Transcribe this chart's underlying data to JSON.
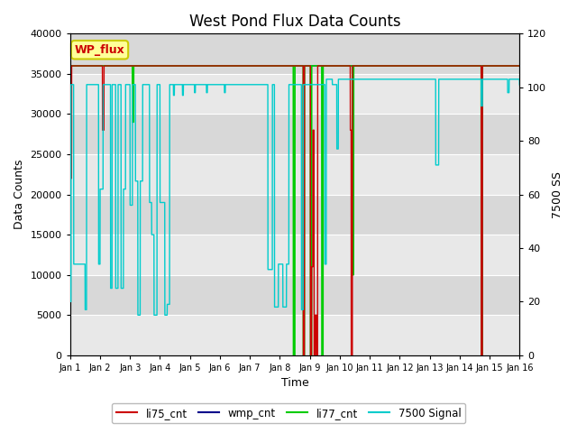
{
  "title": "West Pond Flux Data Counts",
  "xlabel": "Time",
  "ylabel_left": "Data Counts",
  "ylabel_right": "7500 SS",
  "ylim_left": [
    0,
    40000
  ],
  "ylim_right": [
    0,
    120
  ],
  "left_yticks": [
    0,
    5000,
    10000,
    15000,
    20000,
    25000,
    30000,
    35000,
    40000
  ],
  "right_yticks": [
    0,
    20,
    40,
    60,
    80,
    100,
    120
  ],
  "xtick_labels": [
    "Jan 1",
    "Jan 2",
    "Jan 3",
    "Jan 4",
    "Jan 5",
    "Jan 6",
    "Jan 7",
    "Jan 8",
    "Jan 9",
    "Jan 10",
    "Jan 11",
    "Jan 12",
    "Jan 13",
    "Jan 14",
    "Jan 15",
    "Jan 16"
  ],
  "fig_bg_color": "#ffffff",
  "plot_bg_color": "#e8e8e8",
  "strip_colors": [
    "#e8e8e8",
    "#d8d8d8"
  ],
  "grid_color": "#ffffff",
  "legend_colors": [
    "#cc0000",
    "#00008b",
    "#00cc00",
    "#00cccc"
  ],
  "wp_flux_box_color": "#ffff99",
  "wp_flux_border_color": "#cccc00",
  "wp_flux_text_color": "#cc0000",
  "title_fontsize": 12,
  "axis_label_fontsize": 9,
  "tick_fontsize": 8
}
